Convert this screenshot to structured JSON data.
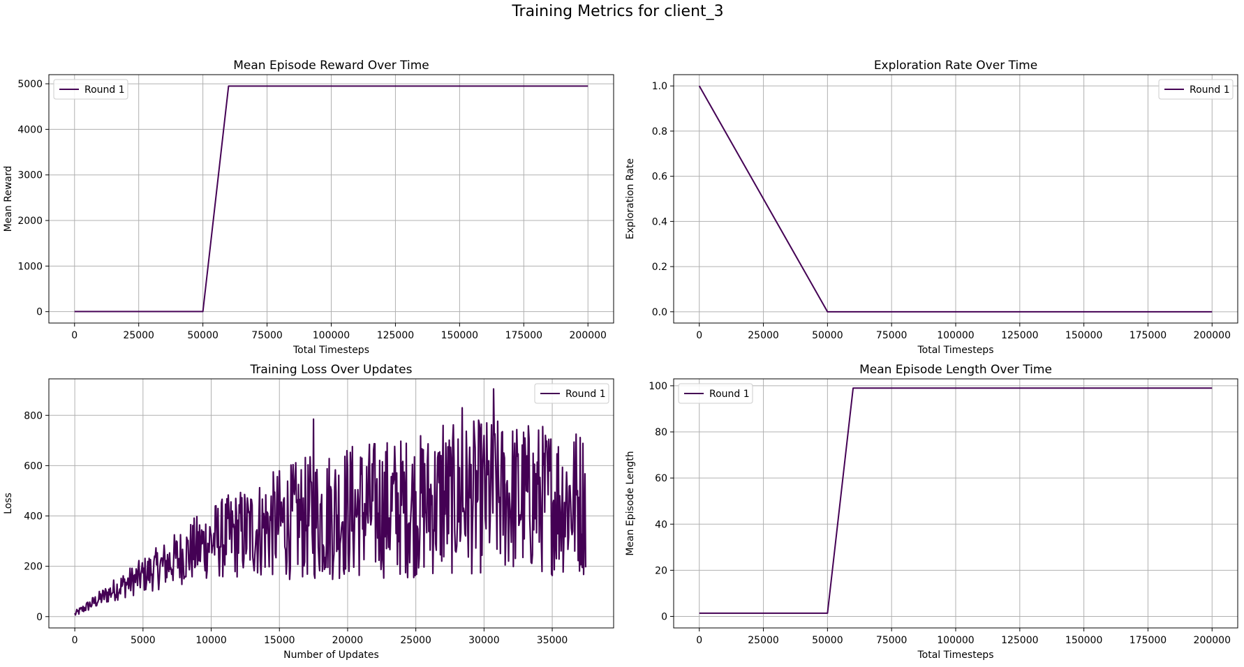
{
  "figure": {
    "title": "Training Metrics for client_3"
  },
  "colors": {
    "line": "#440154",
    "grid": "#b0b0b0",
    "axes": "#000000",
    "legend_border": "#cccccc"
  },
  "chart_data": [
    {
      "type": "line",
      "title": "Mean Episode Reward Over Time",
      "xlabel": "Total Timesteps",
      "ylabel": "Mean Reward",
      "xlim": [
        -10000,
        210000
      ],
      "ylim": [
        -250,
        5200
      ],
      "xticks": [
        0,
        25000,
        50000,
        75000,
        100000,
        125000,
        150000,
        175000,
        200000
      ],
      "yticks": [
        0,
        1000,
        2000,
        3000,
        4000,
        5000
      ],
      "grid": true,
      "legend": "upper-left",
      "series": [
        {
          "name": "Round 1",
          "x": [
            0,
            10000,
            20000,
            30000,
            40000,
            50000,
            60000,
            70000,
            80000,
            90000,
            100000,
            110000,
            120000,
            130000,
            140000,
            150000,
            160000,
            170000,
            180000,
            190000,
            200000
          ],
          "y": [
            2,
            2,
            2,
            2,
            2,
            2,
            4950,
            4950,
            4950,
            4950,
            4950,
            4950,
            4950,
            4950,
            4950,
            4950,
            4950,
            4950,
            4950,
            4950,
            4950
          ]
        }
      ]
    },
    {
      "type": "line",
      "title": "Exploration Rate Over Time",
      "xlabel": "Total Timesteps",
      "ylabel": "Exploration Rate",
      "xlim": [
        -10000,
        210000
      ],
      "ylim": [
        -0.05,
        1.05
      ],
      "xticks": [
        0,
        25000,
        50000,
        75000,
        100000,
        125000,
        150000,
        175000,
        200000
      ],
      "yticks": [
        0.0,
        0.2,
        0.4,
        0.6,
        0.8,
        1.0
      ],
      "ytick_format": "fixed1",
      "grid": true,
      "legend": "upper-right",
      "series": [
        {
          "name": "Round 1",
          "x": [
            0,
            50000,
            60000,
            100000,
            150000,
            200000
          ],
          "y": [
            1.0,
            0.0,
            0.0,
            0.0,
            0.0,
            0.0
          ]
        }
      ]
    },
    {
      "type": "line",
      "title": "Training Loss Over Updates",
      "xlabel": "Number of Updates",
      "ylabel": "Loss",
      "xlim": [
        -1900,
        39500
      ],
      "ylim": [
        -45,
        945
      ],
      "xticks": [
        0,
        5000,
        10000,
        15000,
        20000,
        25000,
        30000,
        35000
      ],
      "yticks": [
        0,
        200,
        400,
        600,
        800
      ],
      "grid": true,
      "legend": "upper-right",
      "series": [
        {
          "name": "Round 1",
          "x_step": 50,
          "x_count": 750,
          "trend_points": [
            [
              0,
              10
            ],
            [
              3000,
              110
            ],
            [
              6000,
              190
            ],
            [
              10000,
              300
            ],
            [
              15000,
              370
            ],
            [
              20000,
              420
            ],
            [
              25000,
              440
            ],
            [
              30000,
              480
            ],
            [
              37500,
              460
            ]
          ],
          "peaks": [
            [
              30700,
              905
            ],
            [
              28400,
              830
            ],
            [
              17500,
              785
            ],
            [
              27000,
              760
            ]
          ]
        }
      ]
    },
    {
      "type": "line",
      "title": "Mean Episode Length Over Time",
      "xlabel": "Total Timesteps",
      "ylabel": "Mean Episode Length",
      "xlim": [
        -10000,
        210000
      ],
      "ylim": [
        -5,
        103
      ],
      "xticks": [
        0,
        25000,
        50000,
        75000,
        100000,
        125000,
        150000,
        175000,
        200000
      ],
      "yticks": [
        0,
        20,
        40,
        60,
        80,
        100
      ],
      "grid": true,
      "legend": "upper-left",
      "series": [
        {
          "name": "Round 1",
          "x": [
            0,
            10000,
            20000,
            30000,
            40000,
            50000,
            60000,
            70000,
            80000,
            90000,
            100000,
            110000,
            120000,
            130000,
            140000,
            150000,
            160000,
            170000,
            180000,
            190000,
            200000
          ],
          "y": [
            1.4,
            1.4,
            1.4,
            1.4,
            1.4,
            1.4,
            99,
            99,
            99,
            99,
            99,
            99,
            99,
            99,
            99,
            99,
            99,
            99,
            99,
            99,
            99
          ]
        }
      ]
    }
  ]
}
